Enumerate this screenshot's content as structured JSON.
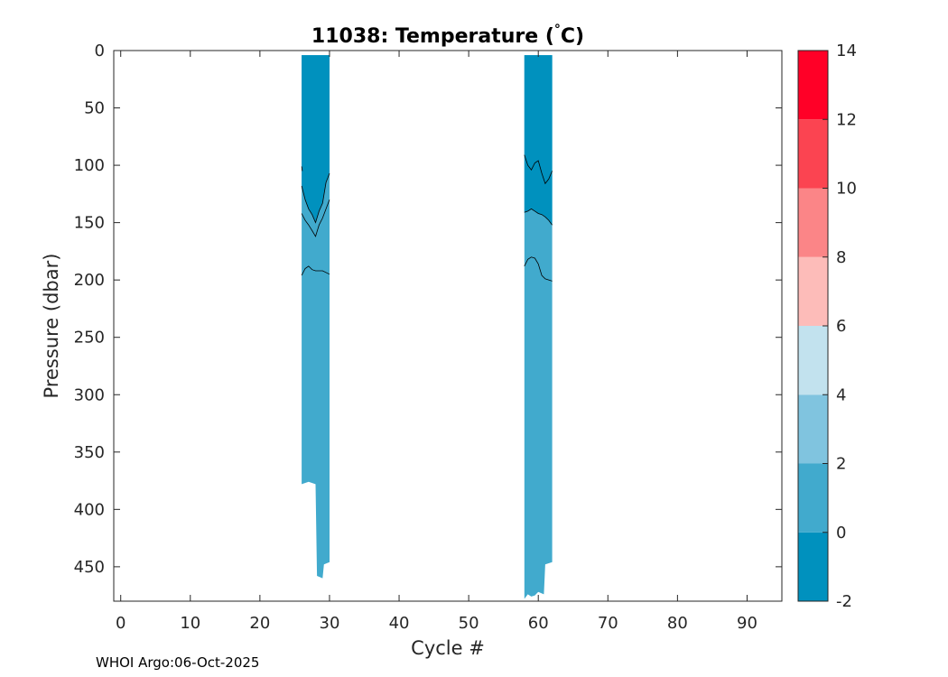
{
  "chart_data": {
    "type": "heatmap",
    "title_prefix": "11038:  Temperature (",
    "title_degree": "°",
    "title_suffix": "C)",
    "xlabel": "Cycle #",
    "ylabel": "Pressure (dbar)",
    "xlim": [
      -1,
      95
    ],
    "ylim": [
      0,
      480
    ],
    "y_reversed": true,
    "xticks": [
      0,
      10,
      20,
      30,
      40,
      50,
      60,
      70,
      80,
      90
    ],
    "yticks": [
      0,
      50,
      100,
      150,
      200,
      250,
      300,
      350,
      400,
      450
    ],
    "colorbar": {
      "ticks": [
        -2,
        0,
        2,
        4,
        6,
        8,
        10,
        12,
        14
      ],
      "levels": [
        {
          "from": -2,
          "to": 0,
          "color": "#0091be"
        },
        {
          "from": 0,
          "to": 2,
          "color": "#41aacd"
        },
        {
          "from": 2,
          "to": 4,
          "color": "#80c4df"
        },
        {
          "from": 4,
          "to": 6,
          "color": "#c2e2ee"
        },
        {
          "from": 6,
          "to": 8,
          "color": "#fdbcb9"
        },
        {
          "from": 8,
          "to": 10,
          "color": "#fb8587"
        },
        {
          "from": 10,
          "to": 12,
          "color": "#fb4451"
        },
        {
          "from": 12,
          "to": 14,
          "color": "#ff0027"
        }
      ]
    },
    "profile_groups": [
      {
        "x_start": 26,
        "x_end": 30,
        "top_pressure": 4,
        "boundary_0C": [
          [
            26,
            118
          ],
          [
            26.5,
            130
          ],
          [
            27,
            138
          ],
          [
            27.5,
            143
          ],
          [
            28,
            150
          ],
          [
            28.5,
            140
          ],
          [
            29,
            133
          ],
          [
            29.5,
            115
          ],
          [
            30,
            107
          ]
        ],
        "bottom": [
          [
            26,
            378
          ],
          [
            27,
            376
          ],
          [
            28,
            378
          ],
          [
            28.2,
            458
          ],
          [
            29,
            460
          ],
          [
            29.2,
            448
          ],
          [
            30,
            446
          ]
        ],
        "contours": [
          [
            [
              26,
              101
            ],
            [
              26.1,
              105
            ]
          ],
          [
            [
              26,
              118
            ],
            [
              26.5,
              130
            ],
            [
              27,
              138
            ],
            [
              27.5,
              143
            ],
            [
              28,
              150
            ],
            [
              28.5,
              140
            ],
            [
              29,
              133
            ],
            [
              29.5,
              115
            ],
            [
              30,
              107
            ]
          ],
          [
            [
              26,
              142
            ],
            [
              26.5,
              148
            ],
            [
              27,
              152
            ],
            [
              27.5,
              157
            ],
            [
              28,
              162
            ],
            [
              28.5,
              152
            ],
            [
              29,
              146
            ],
            [
              29.5,
              138
            ],
            [
              30,
              130
            ]
          ],
          [
            [
              26,
              196
            ],
            [
              26.5,
              190
            ],
            [
              27,
              188
            ],
            [
              27.5,
              191
            ],
            [
              28,
              192
            ],
            [
              29,
              192
            ],
            [
              30,
              195
            ]
          ]
        ]
      },
      {
        "x_start": 58,
        "x_end": 62,
        "top_pressure": 4,
        "boundary_0C": [
          [
            58,
            141
          ],
          [
            58.5,
            140
          ],
          [
            59,
            138
          ],
          [
            59.5,
            140
          ],
          [
            60,
            142
          ],
          [
            60.5,
            143
          ],
          [
            61,
            145
          ],
          [
            61.5,
            148
          ],
          [
            62,
            152
          ]
        ],
        "bottom": [
          [
            58,
            478
          ],
          [
            58.5,
            474
          ],
          [
            59,
            476
          ],
          [
            59.5,
            475
          ],
          [
            60,
            472
          ],
          [
            60.8,
            474
          ],
          [
            61,
            448
          ],
          [
            62,
            446
          ]
        ],
        "contours": [
          [
            [
              58,
              91
            ],
            [
              58.5,
              100
            ],
            [
              59,
              104
            ],
            [
              59.5,
              98
            ],
            [
              60,
              96
            ],
            [
              60.5,
              107
            ],
            [
              61,
              116
            ],
            [
              61.5,
              112
            ],
            [
              62,
              105
            ]
          ],
          [
            [
              58,
              141
            ],
            [
              58.5,
              140
            ],
            [
              59,
              138
            ],
            [
              59.5,
              140
            ],
            [
              60,
              142
            ],
            [
              60.5,
              143
            ],
            [
              61,
              145
            ],
            [
              61.5,
              148
            ],
            [
              62,
              152
            ]
          ],
          [
            [
              58,
              188
            ],
            [
              58.5,
              182
            ],
            [
              59,
              180
            ],
            [
              59.5,
              181
            ],
            [
              60,
              186
            ],
            [
              60.5,
              196
            ],
            [
              61,
              199
            ],
            [
              62,
              201
            ]
          ]
        ]
      }
    ]
  },
  "footer": {
    "text": "WHOI Argo:06-Oct-2025"
  }
}
